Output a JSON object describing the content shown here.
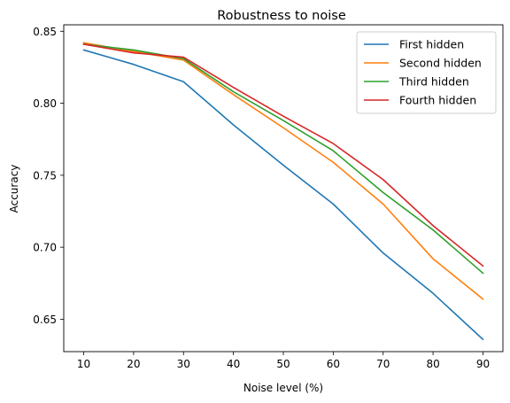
{
  "chart_data": {
    "type": "line",
    "title": "Robustness to noise",
    "xlabel": "Noise level (%)",
    "ylabel": "Accuracy",
    "x": [
      10,
      20,
      30,
      40,
      50,
      60,
      70,
      80,
      90
    ],
    "xticks": [
      "10",
      "20",
      "30",
      "40",
      "50",
      "60",
      "70",
      "80",
      "90"
    ],
    "yticks": [
      "0.65",
      "0.70",
      "0.75",
      "0.80",
      "0.85"
    ],
    "xlim": [
      6,
      94
    ],
    "ylim": [
      0.6275,
      0.8545
    ],
    "legend_position": "top-right",
    "grid": false,
    "series": [
      {
        "name": "First hidden",
        "color": "#1f77b4",
        "values": [
          0.837,
          0.827,
          0.815,
          0.785,
          0.757,
          0.73,
          0.696,
          0.668,
          0.636
        ]
      },
      {
        "name": "Second hidden",
        "color": "#ff7f0e",
        "values": [
          0.842,
          0.836,
          0.83,
          0.806,
          0.783,
          0.759,
          0.73,
          0.692,
          0.664
        ]
      },
      {
        "name": "Third hidden",
        "color": "#2ca02c",
        "values": [
          0.841,
          0.837,
          0.831,
          0.808,
          0.788,
          0.767,
          0.738,
          0.712,
          0.682
        ]
      },
      {
        "name": "Fourth hidden",
        "color": "#d62728",
        "values": [
          0.841,
          0.835,
          0.832,
          0.811,
          0.791,
          0.772,
          0.747,
          0.715,
          0.687
        ]
      }
    ]
  }
}
